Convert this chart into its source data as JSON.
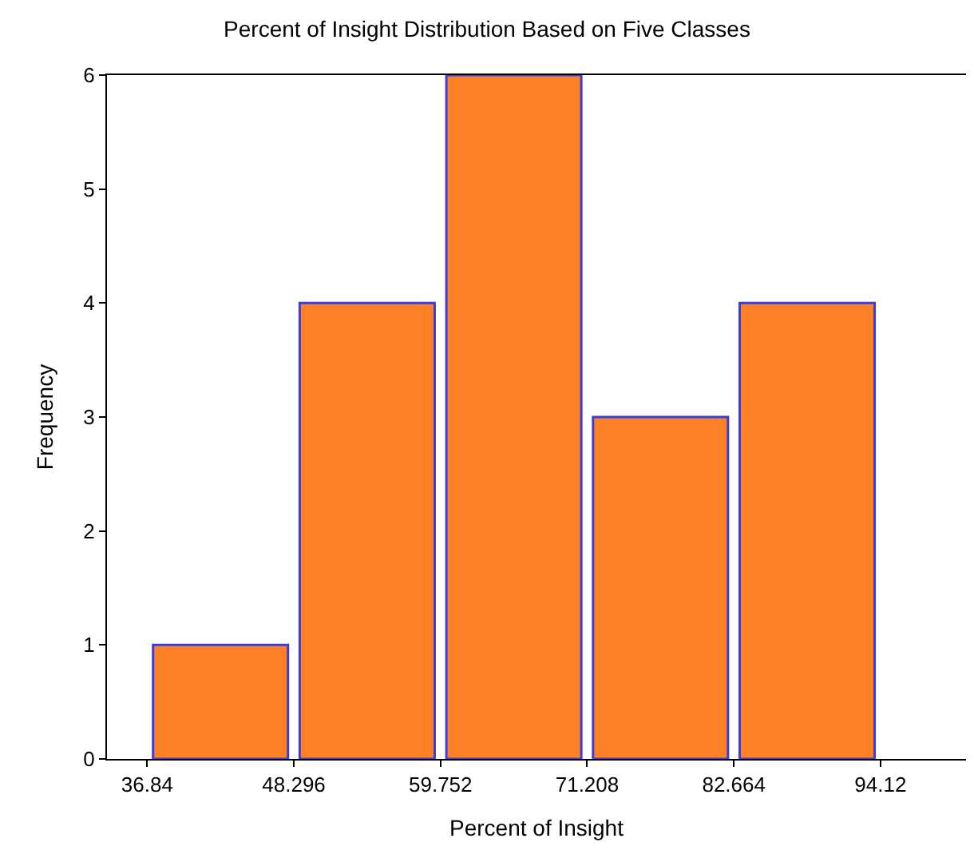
{
  "chart_data": {
    "type": "histogram",
    "title": "Percent of Insight Distribution Based on Five Classes",
    "xlabel": "Percent of Insight",
    "ylabel": "Frequency",
    "bins": [
      36.84,
      48.296,
      59.752,
      71.208,
      82.664,
      94.12
    ],
    "values": [
      1,
      4,
      6,
      3,
      4
    ],
    "color": "#ff8125",
    "xlim": [
      33.7,
      100.8
    ],
    "xticks": [
      36.84,
      48.296,
      59.752,
      71.208,
      82.664,
      94.12
    ],
    "ylim": [
      0,
      6
    ],
    "yticks": [
      0,
      1,
      2,
      3,
      4,
      5,
      6
    ]
  }
}
